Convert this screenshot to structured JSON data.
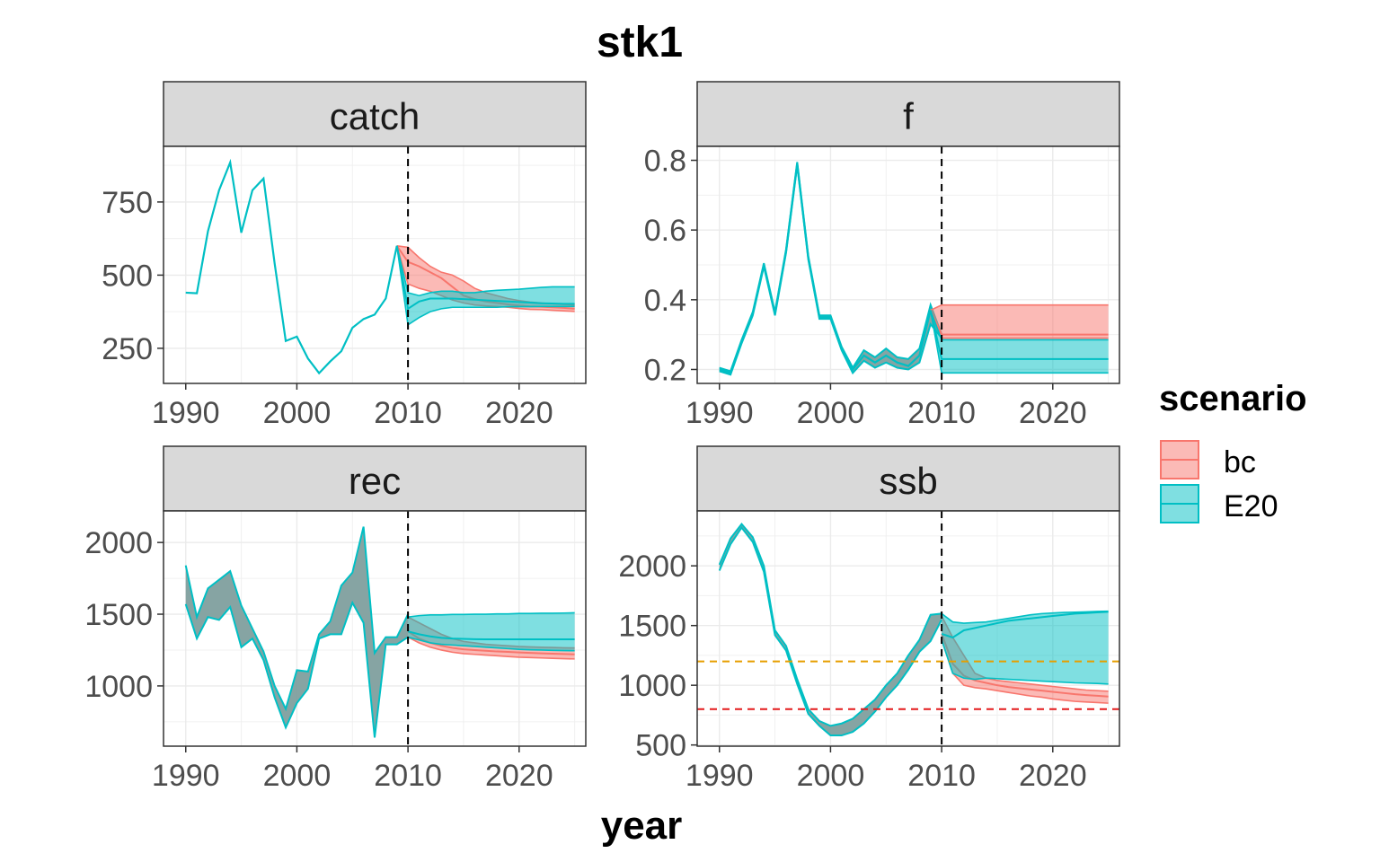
{
  "figure": {
    "title": "stk1",
    "xlabel": "year"
  },
  "legend": {
    "title": "scenario",
    "entries": [
      {
        "label": "bc",
        "color": "#F8766D"
      },
      {
        "label": "E20",
        "color": "#00BFC4"
      }
    ]
  },
  "colors": {
    "bc": "#F8766D",
    "E20": "#00BFC4",
    "overlap": "#7F9F9E",
    "vline": "#000000",
    "ref_orange": "#E69F00",
    "ref_red": "#E41A1C"
  },
  "chart_data": [
    {
      "type": "line",
      "panel": "catch",
      "xlim": [
        1988,
        2026
      ],
      "ylim": [
        130,
        940
      ],
      "x_ticks": [
        1990,
        2000,
        2010,
        2020
      ],
      "y_ticks": [
        250,
        500,
        750
      ],
      "y_tick_labels": [
        "250",
        "500",
        "750"
      ],
      "vline": 2010,
      "hlines": [],
      "history": {
        "x": [
          1990,
          1991,
          1992,
          1993,
          1994,
          1995,
          1996,
          1997,
          1998,
          1999,
          2000,
          2001,
          2002,
          2003,
          2004,
          2005,
          2006,
          2007,
          2008,
          2009
        ],
        "y": [
          440,
          438,
          650,
          790,
          885,
          645,
          790,
          830,
          540,
          275,
          290,
          215,
          165,
          205,
          240,
          320,
          350,
          365,
          420,
          600
        ]
      },
      "series": [
        {
          "name": "bc",
          "x": [
            2009,
            2010,
            2011,
            2012,
            2013,
            2014,
            2015,
            2016,
            2017,
            2018,
            2019,
            2020,
            2021,
            2022,
            2023,
            2024,
            2025
          ],
          "median": [
            600,
            545,
            530,
            510,
            490,
            460,
            430,
            418,
            410,
            405,
            400,
            396,
            393,
            392,
            390,
            388,
            385
          ],
          "lower": [
            600,
            470,
            455,
            445,
            430,
            415,
            405,
            398,
            395,
            393,
            390,
            386,
            383,
            382,
            380,
            378,
            376
          ],
          "upper": [
            600,
            595,
            560,
            530,
            510,
            500,
            480,
            455,
            440,
            430,
            420,
            413,
            408,
            405,
            402,
            400,
            398
          ]
        },
        {
          "name": "E20",
          "x": [
            2009,
            2010,
            2011,
            2012,
            2013,
            2014,
            2015,
            2016,
            2017,
            2018,
            2019,
            2020,
            2021,
            2022,
            2023,
            2024,
            2025
          ],
          "median": [
            600,
            385,
            410,
            420,
            420,
            420,
            418,
            416,
            414,
            412,
            410,
            408,
            406,
            404,
            403,
            402,
            402
          ],
          "lower": [
            600,
            330,
            355,
            375,
            385,
            390,
            390,
            390,
            390,
            390,
            392,
            392,
            392,
            393,
            393,
            393,
            393
          ],
          "upper": [
            600,
            440,
            430,
            440,
            445,
            445,
            440,
            440,
            445,
            448,
            450,
            452,
            455,
            458,
            460,
            460,
            460
          ]
        }
      ]
    },
    {
      "type": "line",
      "panel": "f",
      "xlim": [
        1988,
        2026
      ],
      "ylim": [
        0.16,
        0.84
      ],
      "x_ticks": [
        1990,
        2000,
        2010,
        2020
      ],
      "y_ticks": [
        0.2,
        0.4,
        0.6,
        0.8
      ],
      "y_tick_labels": [
        "0.2",
        "0.4",
        "0.6",
        "0.8"
      ],
      "vline": 2010,
      "hlines": [],
      "history": {
        "x": [
          1990,
          1991,
          1992,
          1993,
          1994,
          1995,
          1996,
          1997,
          1998,
          1999,
          2000,
          2001,
          2002,
          2003,
          2004,
          2005,
          2006,
          2007,
          2008,
          2009
        ],
        "y": [
          0.2,
          0.19,
          0.28,
          0.36,
          0.5,
          0.36,
          0.54,
          0.79,
          0.52,
          0.35,
          0.35,
          0.26,
          0.2,
          0.24,
          0.22,
          0.24,
          0.22,
          0.21,
          0.24,
          0.37
        ]
      },
      "history_band": {
        "x": [
          1990,
          1991,
          1992,
          1993,
          1994,
          1995,
          1996,
          1997,
          1998,
          1999,
          2000,
          2001,
          2002,
          2003,
          2004,
          2005,
          2006,
          2007,
          2008,
          2009,
          2010
        ],
        "lower": [
          0.195,
          0.185,
          0.275,
          0.355,
          0.495,
          0.355,
          0.535,
          0.785,
          0.515,
          0.345,
          0.345,
          0.255,
          0.19,
          0.225,
          0.205,
          0.22,
          0.205,
          0.2,
          0.22,
          0.33,
          0.29
        ],
        "upper": [
          0.205,
          0.195,
          0.285,
          0.365,
          0.505,
          0.365,
          0.545,
          0.795,
          0.525,
          0.355,
          0.355,
          0.265,
          0.205,
          0.255,
          0.235,
          0.26,
          0.235,
          0.23,
          0.26,
          0.385,
          0.3
        ]
      },
      "series": [
        {
          "name": "bc",
          "x": [
            2009,
            2010,
            2025
          ],
          "median": [
            0.37,
            0.3,
            0.3
          ],
          "lower": [
            0.37,
            0.29,
            0.29
          ],
          "upper": [
            0.37,
            0.385,
            0.385
          ]
        },
        {
          "name": "E20",
          "x": [
            2009,
            2010,
            2025
          ],
          "median": [
            0.37,
            0.23,
            0.23
          ],
          "lower": [
            0.37,
            0.19,
            0.19
          ],
          "upper": [
            0.37,
            0.285,
            0.285
          ]
        }
      ]
    },
    {
      "type": "line",
      "panel": "rec",
      "xlim": [
        1988,
        2026
      ],
      "ylim": [
        580,
        2220
      ],
      "x_ticks": [
        1990,
        2000,
        2010,
        2020
      ],
      "y_ticks": [
        1000,
        1500,
        2000
      ],
      "y_tick_labels": [
        "1000",
        "1500",
        "2000"
      ],
      "vline": 2010,
      "hlines": [],
      "history_band": {
        "x": [
          1990,
          1991,
          1992,
          1993,
          1994,
          1995,
          1996,
          1997,
          1998,
          1999,
          2000,
          2001,
          2002,
          2003,
          2004,
          2005,
          2006,
          2007,
          2008,
          2009,
          2010
        ],
        "lower": [
          1570,
          1330,
          1480,
          1460,
          1550,
          1270,
          1330,
          1180,
          920,
          710,
          880,
          980,
          1330,
          1360,
          1360,
          1580,
          1440,
          640,
          1290,
          1290,
          1340
        ],
        "upper": [
          1840,
          1480,
          1680,
          1740,
          1800,
          1560,
          1400,
          1240,
          1000,
          840,
          1110,
          1100,
          1360,
          1450,
          1700,
          1790,
          2110,
          1230,
          1340,
          1340,
          1500
        ]
      },
      "series": [
        {
          "name": "bc",
          "x": [
            2010,
            2011,
            2012,
            2013,
            2014,
            2015,
            2016,
            2017,
            2018,
            2019,
            2020,
            2021,
            2022,
            2023,
            2024,
            2025
          ],
          "median": [
            1380,
            1330,
            1300,
            1280,
            1265,
            1255,
            1250,
            1245,
            1240,
            1237,
            1233,
            1230,
            1227,
            1225,
            1222,
            1220
          ],
          "lower": [
            1340,
            1300,
            1270,
            1250,
            1235,
            1225,
            1220,
            1215,
            1210,
            1205,
            1200,
            1198,
            1195,
            1192,
            1190,
            1188
          ],
          "upper": [
            1480,
            1440,
            1400,
            1360,
            1330,
            1310,
            1300,
            1290,
            1285,
            1280,
            1275,
            1272,
            1270,
            1268,
            1266,
            1265
          ]
        },
        {
          "name": "E20",
          "x": [
            2010,
            2011,
            2012,
            2013,
            2014,
            2015,
            2016,
            2017,
            2018,
            2019,
            2020,
            2021,
            2022,
            2023,
            2024,
            2025
          ],
          "median": [
            1380,
            1360,
            1345,
            1335,
            1330,
            1328,
            1326,
            1325,
            1325,
            1325,
            1325,
            1325,
            1325,
            1325,
            1325,
            1325
          ],
          "lower": [
            1340,
            1320,
            1300,
            1290,
            1285,
            1280,
            1275,
            1270,
            1265,
            1260,
            1255,
            1252,
            1250,
            1248,
            1246,
            1245
          ],
          "upper": [
            1480,
            1490,
            1495,
            1495,
            1498,
            1498,
            1500,
            1500,
            1502,
            1502,
            1505,
            1505,
            1507,
            1507,
            1508,
            1510
          ]
        }
      ]
    },
    {
      "type": "line",
      "panel": "ssb",
      "xlim": [
        1988,
        2026
      ],
      "ylim": [
        490,
        2460
      ],
      "x_ticks": [
        1990,
        2000,
        2010,
        2020
      ],
      "y_ticks": [
        500,
        1000,
        1500,
        2000
      ],
      "y_tick_labels": [
        "500",
        "1000",
        "1500",
        "2000"
      ],
      "vline": 2010,
      "hlines": [
        {
          "y": 1200,
          "color": "#E69F00"
        },
        {
          "y": 800,
          "color": "#E41A1C"
        }
      ],
      "history_band": {
        "x": [
          1990,
          1991,
          1992,
          1993,
          1994,
          1995,
          1996,
          1997,
          1998,
          1999,
          2000,
          2001,
          2002,
          2003,
          2004,
          2005,
          2006,
          2007,
          2008,
          2009,
          2010
        ],
        "lower": [
          1960,
          2180,
          2320,
          2200,
          1950,
          1420,
          1290,
          1010,
          760,
          660,
          580,
          580,
          610,
          680,
          780,
          900,
          1000,
          1130,
          1280,
          1370,
          1550
        ],
        "upper": [
          2010,
          2230,
          2350,
          2240,
          2000,
          1460,
          1330,
          1050,
          800,
          700,
          660,
          680,
          720,
          800,
          880,
          1000,
          1100,
          1250,
          1380,
          1590,
          1600
        ]
      },
      "series": [
        {
          "name": "bc",
          "x": [
            2010,
            2011,
            2012,
            2013,
            2014,
            2015,
            2016,
            2017,
            2018,
            2019,
            2020,
            2021,
            2022,
            2023,
            2024,
            2025
          ],
          "median": [
            1430,
            1180,
            1080,
            1040,
            1020,
            1000,
            985,
            975,
            965,
            955,
            945,
            935,
            925,
            918,
            912,
            905
          ],
          "lower": [
            1380,
            1100,
            1000,
            980,
            970,
            955,
            940,
            925,
            910,
            900,
            885,
            875,
            865,
            860,
            855,
            850
          ],
          "upper": [
            1580,
            1400,
            1250,
            1100,
            1060,
            1040,
            1030,
            1020,
            1010,
            1000,
            990,
            980,
            970,
            960,
            955,
            950
          ]
        },
        {
          "name": "E20",
          "x": [
            2010,
            2011,
            2012,
            2013,
            2014,
            2015,
            2016,
            2017,
            2018,
            2019,
            2020,
            2021,
            2022,
            2023,
            2024,
            2025
          ],
          "median": [
            1430,
            1400,
            1460,
            1480,
            1500,
            1520,
            1540,
            1550,
            1560,
            1570,
            1580,
            1590,
            1600,
            1605,
            1610,
            1615
          ],
          "lower": [
            1380,
            1100,
            1060,
            1050,
            1060,
            1055,
            1050,
            1045,
            1040,
            1035,
            1030,
            1025,
            1020,
            1018,
            1015,
            1010
          ],
          "upper": [
            1600,
            1530,
            1520,
            1525,
            1530,
            1545,
            1560,
            1575,
            1590,
            1600,
            1605,
            1610,
            1612,
            1615,
            1618,
            1620
          ]
        }
      ]
    }
  ]
}
